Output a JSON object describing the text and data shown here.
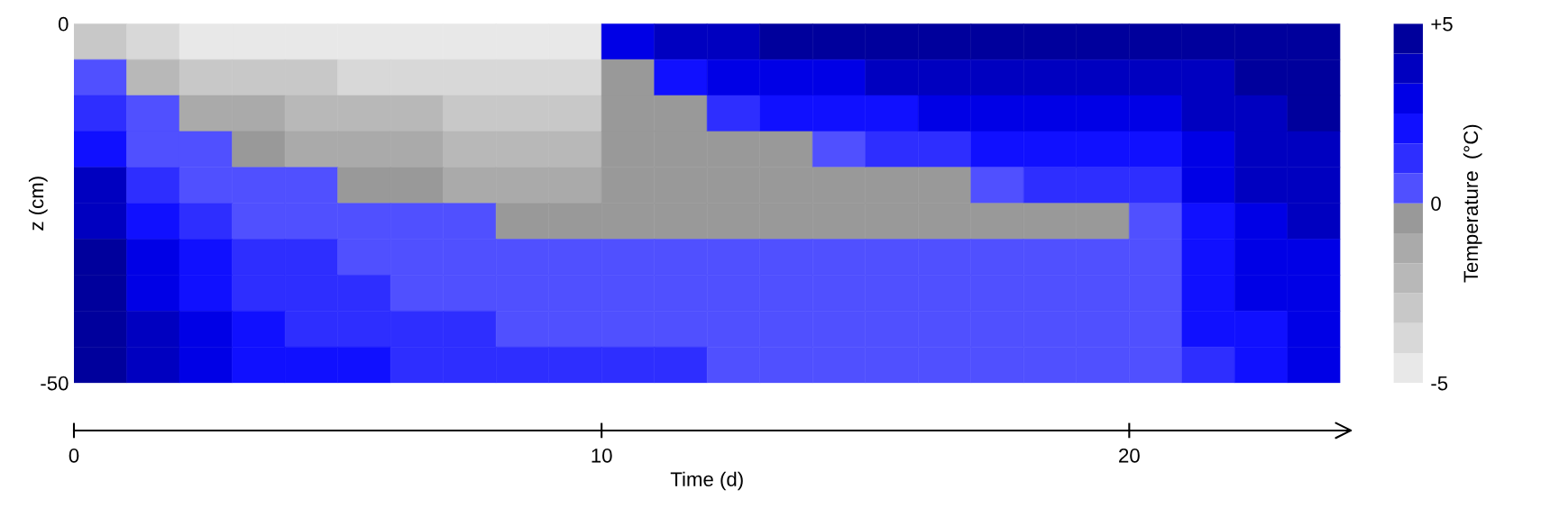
{
  "chart_data": {
    "type": "heatmap",
    "xlabel": "Time (d)",
    "ylabel": "z (cm)",
    "clabel": "Temperature  (°C)",
    "xlim": [
      0,
      24
    ],
    "xticks": [
      0,
      10,
      20
    ],
    "ylim": [
      -50,
      0
    ],
    "yticks": [
      0,
      -50
    ],
    "clim": [
      -5,
      5
    ],
    "cticks": [
      {
        "value": 5,
        "label": "+5"
      },
      0,
      -5
    ],
    "colors": [
      "#e8e8e8",
      "#d8d8d8",
      "#c8c8c8",
      "#b8b8b8",
      "#aaaaaa",
      "#999999",
      "#5050ff",
      "#2e2eff",
      "#1010ff",
      "#0000e6",
      "#0000c0",
      "#00009c"
    ],
    "x": [
      0.5,
      1.5,
      2.5,
      3.5,
      4.5,
      5.5,
      6.5,
      7.5,
      8.5,
      9.5,
      10.5,
      11.5,
      12.5,
      13.5,
      14.5,
      15.5,
      16.5,
      17.5,
      18.5,
      19.5,
      20.5,
      21.5,
      22.5,
      23.5
    ],
    "y": [
      -2.5,
      -7.5,
      -12.5,
      -17.5,
      -22.5,
      -27.5,
      -32.5,
      -37.5,
      -42.5,
      -47.5
    ],
    "cells": [
      [
        -2.9,
        -3.8,
        -4.6,
        -4.6,
        -4.6,
        -4.6,
        -4.6,
        -4.6,
        -4.6,
        -4.6,
        2.9,
        3.8,
        3.8,
        4.6,
        4.6,
        4.6,
        4.6,
        4.6,
        4.6,
        4.6,
        4.6,
        4.6,
        4.6,
        4.6
      ],
      [
        0.4,
        -2.1,
        -2.9,
        -2.9,
        -2.9,
        -3.8,
        -3.8,
        -3.8,
        -3.8,
        -3.8,
        -0.4,
        2.1,
        2.9,
        2.9,
        2.9,
        3.8,
        3.8,
        3.8,
        3.8,
        3.8,
        3.8,
        3.8,
        4.6,
        4.6
      ],
      [
        1.3,
        0.4,
        -1.3,
        -1.3,
        -2.1,
        -2.1,
        -2.1,
        -2.9,
        -2.9,
        -2.9,
        -0.4,
        -0.4,
        1.3,
        2.1,
        2.1,
        2.1,
        2.9,
        2.9,
        2.9,
        2.9,
        2.9,
        3.8,
        3.8,
        4.6
      ],
      [
        2.1,
        0.4,
        0.4,
        -0.4,
        -1.3,
        -1.3,
        -1.3,
        -2.1,
        -2.1,
        -2.1,
        -0.4,
        -0.4,
        -0.4,
        -0.4,
        0.4,
        1.3,
        1.3,
        2.1,
        2.1,
        2.1,
        2.1,
        2.9,
        3.8,
        3.8
      ],
      [
        3.8,
        1.3,
        0.4,
        0.4,
        0.4,
        -0.4,
        -0.4,
        -1.3,
        -1.3,
        -1.3,
        -0.4,
        -0.4,
        -0.4,
        -0.4,
        -0.4,
        -0.4,
        -0.4,
        0.4,
        1.3,
        1.3,
        1.3,
        2.9,
        3.8,
        3.8
      ],
      [
        3.8,
        2.1,
        1.3,
        0.4,
        0.4,
        0.4,
        0.4,
        0.4,
        -0.4,
        -0.4,
        -0.4,
        -0.4,
        -0.4,
        -0.4,
        -0.4,
        -0.4,
        -0.4,
        -0.4,
        -0.4,
        -0.4,
        0.4,
        2.1,
        2.9,
        3.8
      ],
      [
        4.6,
        2.9,
        2.1,
        1.3,
        1.3,
        0.4,
        0.4,
        0.4,
        0.4,
        0.4,
        0.4,
        0.4,
        0.4,
        0.4,
        0.4,
        0.4,
        0.4,
        0.4,
        0.4,
        0.4,
        0.4,
        2.1,
        2.9,
        2.9
      ],
      [
        4.6,
        2.9,
        2.1,
        1.3,
        1.3,
        1.3,
        0.4,
        0.4,
        0.4,
        0.4,
        0.4,
        0.4,
        0.4,
        0.4,
        0.4,
        0.4,
        0.4,
        0.4,
        0.4,
        0.4,
        0.4,
        2.1,
        2.9,
        2.9
      ],
      [
        4.6,
        3.8,
        2.9,
        2.1,
        1.3,
        1.3,
        1.3,
        1.3,
        0.4,
        0.4,
        0.4,
        0.4,
        0.4,
        0.4,
        0.4,
        0.4,
        0.4,
        0.4,
        0.4,
        0.4,
        0.4,
        2.1,
        2.1,
        2.9
      ],
      [
        4.6,
        3.8,
        2.9,
        2.1,
        2.1,
        2.1,
        1.3,
        1.3,
        1.3,
        1.3,
        1.3,
        1.3,
        0.4,
        0.4,
        0.4,
        0.4,
        0.4,
        0.4,
        0.4,
        0.4,
        0.4,
        1.3,
        2.1,
        2.9
      ]
    ]
  }
}
